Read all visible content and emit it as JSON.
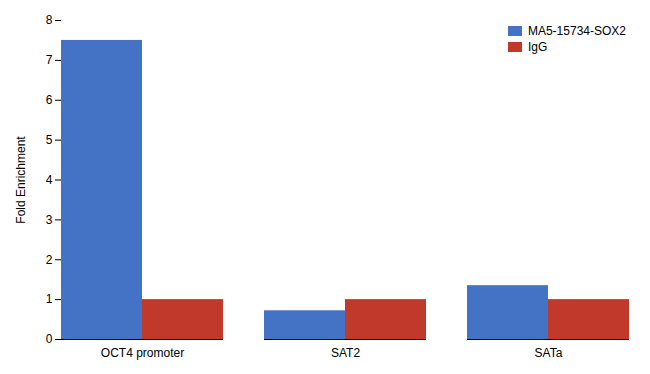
{
  "chart_data": {
    "type": "bar",
    "categories": [
      "OCT4 promoter",
      "SAT2",
      "SATa"
    ],
    "series": [
      {
        "name": "MA5-15734-SOX2",
        "color": "#4472C4",
        "values": [
          7.5,
          0.72,
          1.35
        ]
      },
      {
        "name": "IgG",
        "color": "#C0392B",
        "values": [
          1.0,
          1.0,
          1.0
        ]
      }
    ],
    "ylabel": "Fold Enrichment",
    "ylim": [
      0,
      8
    ],
    "yticks": [
      0,
      1,
      2,
      3,
      4,
      5,
      6,
      7,
      8
    ],
    "legend": "upper right",
    "grid": false
  }
}
